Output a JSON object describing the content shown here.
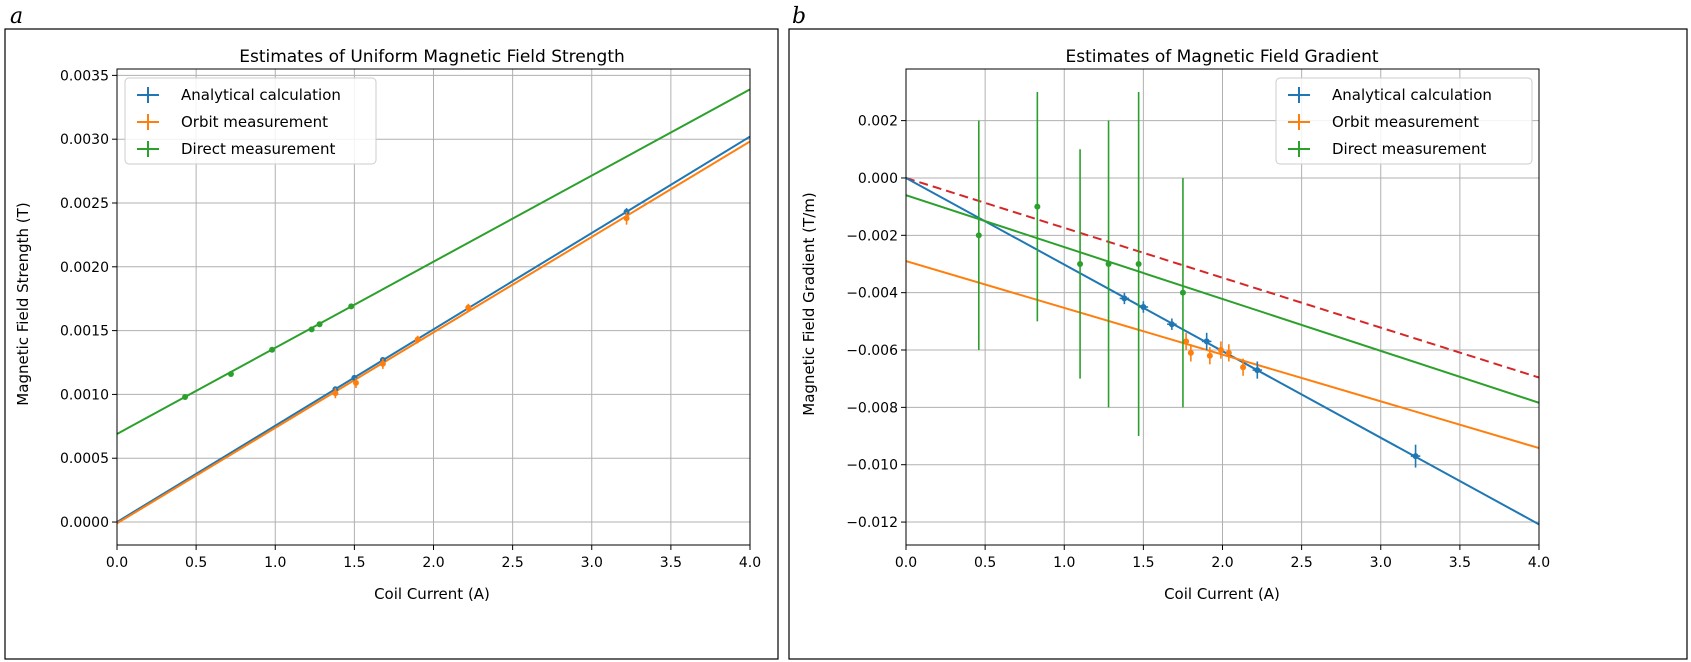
{
  "chart_data": [
    {
      "panel_label": "a",
      "type": "scatter",
      "title": "Estimates of Uniform Magnetic Field Strength",
      "xlabel": "Coil Current (A)",
      "ylabel": "Magnetic Field Strength (T)",
      "xlim": [
        0.0,
        4.0
      ],
      "ylim": [
        -0.00018,
        0.00355
      ],
      "xticks": [
        0.0,
        0.5,
        1.0,
        1.5,
        2.0,
        2.5,
        3.0,
        3.5,
        4.0
      ],
      "xtick_labels": [
        "0.0",
        "0.5",
        "1.0",
        "1.5",
        "2.0",
        "2.5",
        "3.0",
        "3.5",
        "4.0"
      ],
      "yticks": [
        0.0,
        0.0005,
        0.001,
        0.0015,
        0.002,
        0.0025,
        0.003,
        0.0035
      ],
      "ytick_labels": [
        "0.0000",
        "0.0005",
        "0.0010",
        "0.0015",
        "0.0020",
        "0.0025",
        "0.0030",
        "0.0035"
      ],
      "grid": true,
      "legend_position": "top-left",
      "series": [
        {
          "name": "Analytical calculation",
          "color": "#1f77b4",
          "points": [
            {
              "x": 1.38,
              "y": 0.00104,
              "yerr": 2e-05
            },
            {
              "x": 1.5,
              "y": 0.00113,
              "yerr": 2e-05
            },
            {
              "x": 1.68,
              "y": 0.00127,
              "yerr": 2e-05
            },
            {
              "x": 3.22,
              "y": 0.00243,
              "yerr": 3e-05
            }
          ],
          "fit": {
            "slope": 0.000755,
            "intercept": 0.0
          }
        },
        {
          "name": "Orbit measurement",
          "color": "#ff7f0e",
          "points": [
            {
              "x": 1.38,
              "y": 0.00101,
              "yerr": 4e-05
            },
            {
              "x": 1.51,
              "y": 0.00109,
              "yerr": 4e-05
            },
            {
              "x": 1.68,
              "y": 0.00124,
              "yerr": 4e-05
            },
            {
              "x": 1.9,
              "y": 0.00143,
              "yerr": 3e-05
            },
            {
              "x": 2.22,
              "y": 0.00168,
              "yerr": 3e-05
            },
            {
              "x": 3.22,
              "y": 0.00238,
              "yerr": 5e-05
            }
          ],
          "fit": {
            "slope": 0.000748,
            "intercept": -1e-05
          }
        },
        {
          "name": "Direct measurement",
          "color": "#2ca02c",
          "points": [
            {
              "x": 0.43,
              "y": 0.00098,
              "yerr": 1e-05
            },
            {
              "x": 0.72,
              "y": 0.00116,
              "yerr": 1e-05
            },
            {
              "x": 0.98,
              "y": 0.00135,
              "yerr": 1e-05
            },
            {
              "x": 1.23,
              "y": 0.00151,
              "yerr": 1e-05
            },
            {
              "x": 1.28,
              "y": 0.00155,
              "yerr": 1e-05
            },
            {
              "x": 1.48,
              "y": 0.00169,
              "yerr": 1e-05
            }
          ],
          "fit": {
            "slope": 0.000675,
            "intercept": 0.00069
          }
        }
      ]
    },
    {
      "panel_label": "b",
      "type": "scatter",
      "title": "Estimates of Magnetic Field Gradient",
      "xlabel": "Coil Current (A)",
      "ylabel": "Magnetic Field Gradient (T/m)",
      "xlim": [
        0.0,
        4.0
      ],
      "ylim": [
        -0.0128,
        0.0038
      ],
      "xticks": [
        0.0,
        0.5,
        1.0,
        1.5,
        2.0,
        2.5,
        3.0,
        3.5,
        4.0
      ],
      "xtick_labels": [
        "0.0",
        "0.5",
        "1.0",
        "1.5",
        "2.0",
        "2.5",
        "3.0",
        "3.5",
        "4.0"
      ],
      "yticks": [
        -0.012,
        -0.01,
        -0.008,
        -0.006,
        -0.004,
        -0.002,
        0.0,
        0.002
      ],
      "ytick_labels": [
        "−0.012",
        "−0.010",
        "−0.008",
        "−0.006",
        "−0.004",
        "−0.002",
        "0.000",
        "0.002"
      ],
      "grid": true,
      "legend_position": "top-right",
      "series": [
        {
          "name": "Analytical calculation",
          "color": "#1f77b4",
          "points": [
            {
              "x": 1.38,
              "y": -0.0042,
              "yerr": 0.0002,
              "xerr": 0.03
            },
            {
              "x": 1.5,
              "y": -0.0045,
              "yerr": 0.0002,
              "xerr": 0.03
            },
            {
              "x": 1.68,
              "y": -0.0051,
              "yerr": 0.0002,
              "xerr": 0.03
            },
            {
              "x": 1.9,
              "y": -0.0057,
              "yerr": 0.0003,
              "xerr": 0.03
            },
            {
              "x": 2.22,
              "y": -0.0067,
              "yerr": 0.0003,
              "xerr": 0.03
            },
            {
              "x": 3.22,
              "y": -0.0097,
              "yerr": 0.0004,
              "xerr": 0.03
            }
          ],
          "fit": {
            "slope": -0.00302,
            "intercept": 0.0
          }
        },
        {
          "name": "Orbit measurement",
          "color": "#ff7f0e",
          "points": [
            {
              "x": 1.77,
              "y": -0.0057,
              "yerr": 0.0003
            },
            {
              "x": 1.8,
              "y": -0.0061,
              "yerr": 0.0003
            },
            {
              "x": 1.92,
              "y": -0.0062,
              "yerr": 0.0003
            },
            {
              "x": 1.99,
              "y": -0.006,
              "yerr": 0.0003
            },
            {
              "x": 2.04,
              "y": -0.0061,
              "yerr": 0.0003
            },
            {
              "x": 2.13,
              "y": -0.0066,
              "yerr": 0.0003
            }
          ],
          "fit": {
            "slope": -0.00163,
            "intercept": -0.0029
          }
        },
        {
          "name": "Direct measurement",
          "color": "#2ca02c",
          "points": [
            {
              "x": 0.46,
              "y": -0.002,
              "yerr": 0.004
            },
            {
              "x": 0.83,
              "y": -0.001,
              "yerr": 0.004
            },
            {
              "x": 1.1,
              "y": -0.003,
              "yerr": 0.004
            },
            {
              "x": 1.28,
              "y": -0.003,
              "yerr": 0.005
            },
            {
              "x": 1.47,
              "y": -0.003,
              "yerr": 0.006
            },
            {
              "x": 1.75,
              "y": -0.004,
              "yerr": 0.004
            }
          ],
          "fit": {
            "slope": -0.00181,
            "intercept": -0.0006
          }
        }
      ],
      "reference_line": {
        "color": "#d62728",
        "style": "dashed",
        "slope": -0.00174,
        "intercept": 0.0
      }
    }
  ]
}
